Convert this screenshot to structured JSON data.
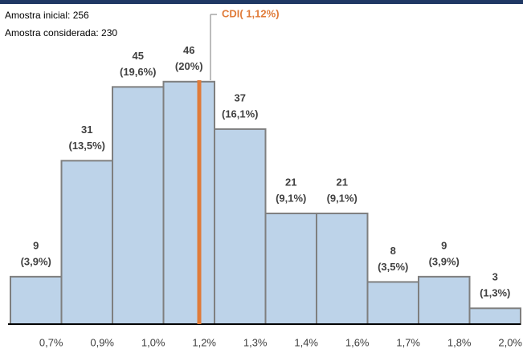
{
  "chart_data": {
    "type": "bar",
    "notes": [
      "Amostra inicial: 256",
      "Amostra considerada: 230"
    ],
    "reference_label": "CDI( 1,12%)",
    "categories": [
      "0,7%",
      "0,9%",
      "1,0%",
      "1,2%",
      "1,3%",
      "1,4%",
      "1,6%",
      "1,7%",
      "1,8%",
      "2,0%"
    ],
    "values": [
      9,
      31,
      45,
      46,
      37,
      21,
      21,
      8,
      9,
      3
    ],
    "percent_labels": [
      "(3,9%)",
      "(13,5%)",
      "(19,6%)",
      "(20%)",
      "(16,1%)",
      "(9,1%)",
      "(9,1%)",
      "(3,5%)",
      "(3,9%)",
      "(1,3%)"
    ],
    "color": "#bdd3e9",
    "edge_color": "#7f7f7f",
    "reference_color": "#e07b39",
    "ylim": [
      0,
      50
    ]
  }
}
